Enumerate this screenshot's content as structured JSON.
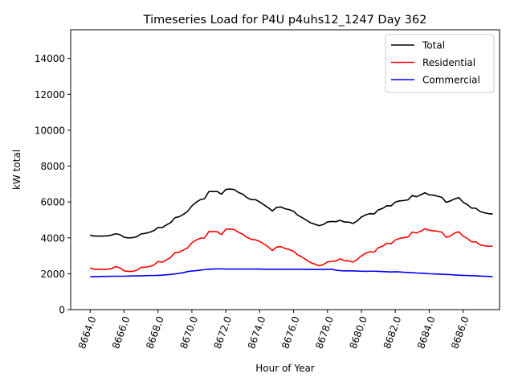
{
  "chart_data": {
    "type": "line",
    "title": "Timeseries Load for P4U p4uhs12_1247  Day 362",
    "xlabel": "Hour of Year",
    "ylabel": "kW total",
    "xlim": [
      8662.85,
      8688.15
    ],
    "ylim": [
      0,
      15600
    ],
    "xticks": [
      8664,
      8666,
      8668,
      8670,
      8672,
      8674,
      8676,
      8678,
      8680,
      8682,
      8684,
      8686
    ],
    "xtick_labels": [
      "8664.0",
      "8666.0",
      "8668.0",
      "8670.0",
      "8672.0",
      "8674.0",
      "8676.0",
      "8678.0",
      "8680.0",
      "8682.0",
      "8684.0",
      "8686.0"
    ],
    "yticks": [
      0,
      2000,
      4000,
      6000,
      8000,
      10000,
      12000,
      14000
    ],
    "ytick_labels": [
      "0",
      "2000",
      "4000",
      "6000",
      "8000",
      "10000",
      "12000",
      "14000"
    ],
    "grid": false,
    "legend_position": "top-right",
    "x": [
      8664.0,
      8664.25,
      8664.5,
      8664.75,
      8665.0,
      8665.25,
      8665.5,
      8665.75,
      8666.0,
      8666.25,
      8666.5,
      8666.75,
      8667.0,
      8667.25,
      8667.5,
      8667.75,
      8668.0,
      8668.25,
      8668.5,
      8668.75,
      8669.0,
      8669.25,
      8669.5,
      8669.75,
      8670.0,
      8670.25,
      8670.5,
      8670.75,
      8671.0,
      8671.25,
      8671.5,
      8671.75,
      8672.0,
      8672.25,
      8672.5,
      8672.75,
      8673.0,
      8673.25,
      8673.5,
      8673.75,
      8674.0,
      8674.25,
      8674.5,
      8674.75,
      8675.0,
      8675.25,
      8675.5,
      8675.75,
      8676.0,
      8676.25,
      8676.5,
      8676.75,
      8677.0,
      8677.25,
      8677.5,
      8677.75,
      8678.0,
      8678.25,
      8678.5,
      8678.75,
      8679.0,
      8679.25,
      8679.5,
      8679.75,
      8680.0,
      8680.25,
      8680.5,
      8680.75,
      8681.0,
      8681.25,
      8681.5,
      8681.75,
      8682.0,
      8682.25,
      8682.5,
      8682.75,
      8683.0,
      8683.25,
      8683.5,
      8683.75,
      8684.0,
      8684.25,
      8684.5,
      8684.75,
      8685.0,
      8685.25,
      8685.5,
      8685.75,
      8686.0,
      8686.25,
      8686.5,
      8686.75,
      8687.0,
      8687.25,
      8687.5,
      8687.75
    ],
    "series": [
      {
        "name": "Total",
        "color": "#000000",
        "values": [
          4150,
          4100,
          4100,
          4100,
          4110,
          4150,
          4230,
          4180,
          4030,
          4000,
          4010,
          4060,
          4220,
          4250,
          4310,
          4400,
          4580,
          4570,
          4720,
          4850,
          5120,
          5180,
          5310,
          5480,
          5780,
          5980,
          6130,
          6180,
          6580,
          6580,
          6580,
          6430,
          6700,
          6720,
          6690,
          6530,
          6440,
          6240,
          6130,
          6130,
          6000,
          5840,
          5680,
          5500,
          5700,
          5720,
          5620,
          5570,
          5480,
          5260,
          5130,
          4990,
          4840,
          4760,
          4680,
          4740,
          4890,
          4910,
          4900,
          4980,
          4880,
          4880,
          4800,
          4940,
          5160,
          5280,
          5350,
          5330,
          5560,
          5640,
          5790,
          5780,
          5990,
          6060,
          6080,
          6120,
          6360,
          6290,
          6400,
          6510,
          6400,
          6380,
          6320,
          6260,
          5980,
          6060,
          6170,
          6240,
          5990,
          5850,
          5660,
          5650,
          5470,
          5400,
          5350,
          5330
        ]
      },
      {
        "name": "Residential",
        "color": "#ff0000",
        "values": [
          2320,
          2250,
          2250,
          2240,
          2250,
          2280,
          2400,
          2330,
          2160,
          2130,
          2130,
          2190,
          2350,
          2370,
          2400,
          2480,
          2680,
          2640,
          2770,
          2910,
          3180,
          3200,
          3320,
          3440,
          3720,
          3880,
          3980,
          3990,
          4350,
          4350,
          4340,
          4180,
          4480,
          4490,
          4460,
          4310,
          4200,
          4030,
          3920,
          3890,
          3800,
          3660,
          3500,
          3290,
          3490,
          3510,
          3410,
          3340,
          3250,
          3050,
          2930,
          2770,
          2620,
          2540,
          2440,
          2510,
          2660,
          2690,
          2710,
          2830,
          2720,
          2720,
          2650,
          2790,
          3000,
          3140,
          3230,
          3200,
          3450,
          3530,
          3700,
          3670,
          3880,
          3970,
          4010,
          4040,
          4320,
          4270,
          4370,
          4510,
          4420,
          4400,
          4360,
          4320,
          4030,
          4100,
          4270,
          4340,
          4100,
          3970,
          3780,
          3780,
          3610,
          3560,
          3530,
          3540
        ]
      },
      {
        "name": "Commercial",
        "color": "#0000ff",
        "values": [
          1830,
          1840,
          1840,
          1850,
          1850,
          1860,
          1860,
          1860,
          1860,
          1870,
          1880,
          1880,
          1880,
          1890,
          1900,
          1900,
          1910,
          1920,
          1940,
          1960,
          1990,
          2020,
          2060,
          2120,
          2150,
          2170,
          2200,
          2230,
          2250,
          2260,
          2270,
          2270,
          2260,
          2260,
          2260,
          2260,
          2260,
          2260,
          2260,
          2260,
          2260,
          2250,
          2250,
          2250,
          2250,
          2250,
          2250,
          2250,
          2250,
          2250,
          2250,
          2240,
          2240,
          2240,
          2240,
          2240,
          2250,
          2250,
          2200,
          2170,
          2160,
          2160,
          2160,
          2150,
          2140,
          2130,
          2140,
          2140,
          2130,
          2120,
          2110,
          2100,
          2110,
          2100,
          2080,
          2070,
          2060,
          2040,
          2030,
          2020,
          2000,
          1990,
          1980,
          1970,
          1960,
          1950,
          1930,
          1920,
          1910,
          1900,
          1890,
          1880,
          1870,
          1860,
          1850,
          1830
        ]
      }
    ]
  }
}
